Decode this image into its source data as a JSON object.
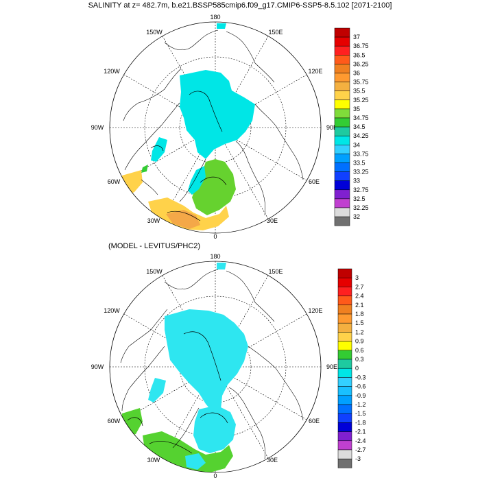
{
  "figure": {
    "title": "SALINITY at z= 482.7m, b.e21.BSSP585cmip6.f09_g17.CMIP6-SSP5-8.5.102 [2071-2100]",
    "diff_title": "(MODEL - LEVITUS/PHC2)"
  },
  "longitude_labels": {
    "n180": "180",
    "w150": "150W",
    "e150": "150E",
    "w120": "120W",
    "e120": "120E",
    "w90": "90W",
    "e90": "90E",
    "w60": "60W",
    "e60": "60E",
    "w30": "30W",
    "e30": "30E",
    "s0": "0"
  },
  "colorbar_top": {
    "labels": [
      "37",
      "36.75",
      "36.5",
      "36.25",
      "36",
      "35.75",
      "35.5",
      "35.25",
      "35",
      "34.75",
      "34.5",
      "34.25",
      "34",
      "33.75",
      "33.5",
      "33.25",
      "33",
      "32.75",
      "32.5",
      "32.25",
      "32"
    ],
    "colors": [
      "#c00000",
      "#e60000",
      "#ff2020",
      "#ff5a1a",
      "#f08020",
      "#ff9a30",
      "#f4b040",
      "#ffd24a",
      "#ffff00",
      "#80dc3a",
      "#33cc33",
      "#1ecaa0",
      "#00e6e6",
      "#33d0ff",
      "#00a0ff",
      "#0070ff",
      "#1040ff",
      "#0000d8",
      "#8020d0",
      "#c040d0",
      "#dcdcdc",
      "#707070"
    ]
  },
  "colorbar_bottom": {
    "labels": [
      "3",
      "2.7",
      "2.4",
      "2.1",
      "1.8",
      "1.5",
      "1.2",
      "0.9",
      "0.6",
      "0.3",
      "0",
      "-0.3",
      "-0.6",
      "-0.9",
      "-1.2",
      "-1.5",
      "-1.8",
      "-2.1",
      "-2.4",
      "-2.7",
      "-3"
    ],
    "colors": [
      "#c00000",
      "#e60000",
      "#ff2020",
      "#ff5a1a",
      "#f08020",
      "#ff9a30",
      "#f4b040",
      "#ffd24a",
      "#ffff00",
      "#33cc33",
      "#1ecaa0",
      "#00e6e6",
      "#33d0ff",
      "#19c0ff",
      "#00a0ff",
      "#0070ff",
      "#1040ff",
      "#0000d8",
      "#8020d0",
      "#c040d0",
      "#dcdcdc",
      "#707070"
    ]
  }
}
